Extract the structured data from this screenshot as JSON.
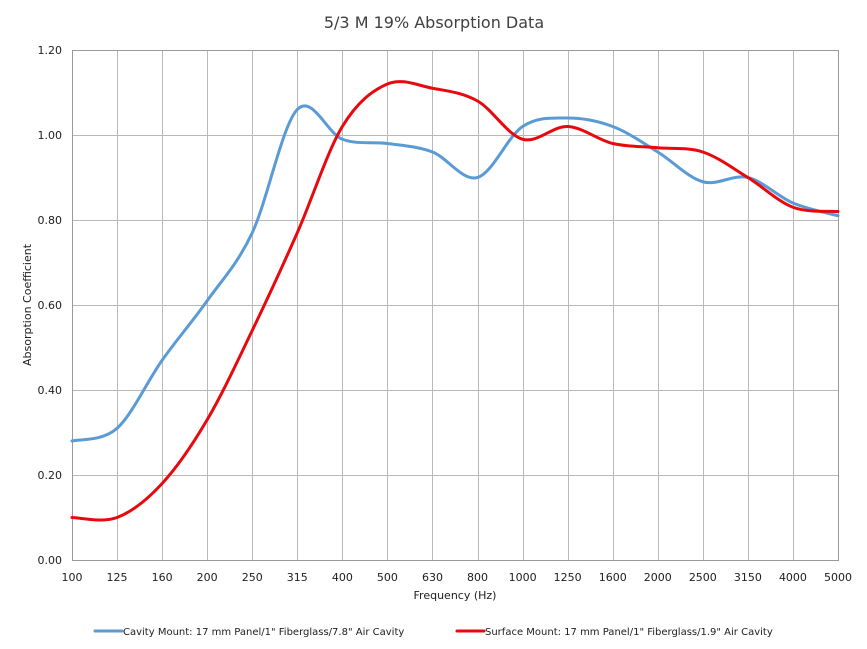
{
  "chart_data": {
    "type": "line",
    "title": "5/3 M 19% Absorption Data",
    "xlabel": "Frequency (Hz)",
    "ylabel": "Absorption Coefficient",
    "categories": [
      "100",
      "125",
      "160",
      "200",
      "250",
      "315",
      "400",
      "500",
      "630",
      "800",
      "1000",
      "1250",
      "1600",
      "2000",
      "2500",
      "3150",
      "4000",
      "5000"
    ],
    "ytick_labels": [
      "0.00",
      "0.20",
      "0.40",
      "0.60",
      "0.80",
      "1.00",
      "1.20"
    ],
    "ylim": [
      0,
      1.2
    ],
    "grid": true,
    "legend_position": "bottom",
    "series": [
      {
        "name": "Cavity Mount: 17 mm Panel/1\" Fiberglass/7.8\" Air Cavity",
        "color": "#5b9bd5",
        "values": [
          0.28,
          0.31,
          0.47,
          0.61,
          0.77,
          1.06,
          0.99,
          0.98,
          0.96,
          0.9,
          1.02,
          1.04,
          1.02,
          0.96,
          0.89,
          0.9,
          0.84,
          0.81
        ]
      },
      {
        "name": "Surface Mount: 17 mm Panel/1\" Fiberglass/1.9\" Air Cavity",
        "color": "#e8090d",
        "values": [
          0.1,
          0.1,
          0.18,
          0.33,
          0.54,
          0.77,
          1.02,
          1.12,
          1.11,
          1.08,
          0.99,
          1.02,
          0.98,
          0.97,
          0.96,
          0.9,
          0.83,
          0.82
        ]
      }
    ]
  }
}
